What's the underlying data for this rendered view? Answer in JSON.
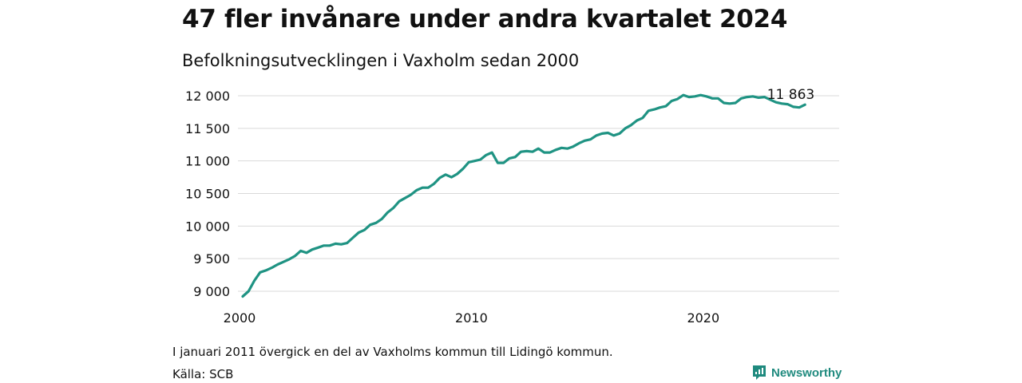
{
  "title": "47 fler invånare under andra kvartalet 2024",
  "subtitle": "Befolkningsutvecklingen i Vaxholm sedan 2000",
  "footnote": "I januari 2011 övergick en del av Vaxholms kommun till Lidingö kommun.",
  "source": "Källa: SCB",
  "brand": {
    "name": "Newsworthy",
    "icon": "newsworthy-logo-icon",
    "color": "#1f8a7e"
  },
  "chart_data": {
    "type": "line",
    "title": "47 fler invånare under andra kvartalet 2024",
    "subtitle": "Befolkningsutvecklingen i Vaxholm sedan 2000",
    "xlim": [
      2000,
      2025.25
    ],
    "ylim": [
      8900,
      12050
    ],
    "yticks": [
      9000,
      9500,
      10000,
      10500,
      11000,
      11500,
      12000
    ],
    "ytick_labels": [
      "9 000",
      "9 500",
      "10 000",
      "10 500",
      "11 000",
      "11 500",
      "12 000"
    ],
    "xticks": [
      2000,
      2010,
      2020
    ],
    "xtick_labels": [
      "2000",
      "2010",
      "2020"
    ],
    "grid": true,
    "line_color": "#1f9383",
    "end_label": "11 863",
    "series": [
      {
        "x": [
          2000.0,
          2000.25,
          2000.5,
          2000.75,
          2001.0,
          2001.25,
          2001.5,
          2001.75,
          2002.0,
          2002.25,
          2002.5,
          2002.75,
          2003.0,
          2003.25,
          2003.5,
          2003.75,
          2004.0,
          2004.25,
          2004.5,
          2004.75,
          2005.0,
          2005.25,
          2005.5,
          2005.75,
          2006.0,
          2006.25,
          2006.5,
          2006.75,
          2007.0,
          2007.25,
          2007.5,
          2007.75,
          2008.0,
          2008.25,
          2008.5,
          2008.75,
          2009.0,
          2009.25,
          2009.5,
          2009.75,
          2010.0,
          2010.25,
          2010.5,
          2010.75,
          2011.0,
          2011.25,
          2011.5,
          2011.75,
          2012.0,
          2012.25,
          2012.5,
          2012.75,
          2013.0,
          2013.25,
          2013.5,
          2013.75,
          2014.0,
          2014.25,
          2014.5,
          2014.75,
          2015.0,
          2015.25,
          2015.5,
          2015.75,
          2016.0,
          2016.25,
          2016.5,
          2016.75,
          2017.0,
          2017.25,
          2017.5,
          2017.75,
          2018.0,
          2018.25,
          2018.5,
          2018.75,
          2019.0,
          2019.25,
          2019.5,
          2019.75,
          2020.0,
          2020.25,
          2020.5,
          2020.75,
          2021.0,
          2021.25,
          2021.5,
          2021.75,
          2022.0,
          2022.25,
          2022.5,
          2022.75,
          2023.0,
          2023.25,
          2023.5,
          2023.75,
          2024.0,
          2024.25
        ],
        "y": [
          8920,
          9000,
          9160,
          9290,
          9320,
          9360,
          9410,
          9450,
          9490,
          9540,
          9620,
          9590,
          9640,
          9670,
          9700,
          9700,
          9730,
          9720,
          9740,
          9820,
          9900,
          9940,
          10020,
          10050,
          10110,
          10210,
          10280,
          10380,
          10430,
          10480,
          10550,
          10590,
          10590,
          10650,
          10740,
          10790,
          10750,
          10800,
          10880,
          10980,
          11000,
          11020,
          11090,
          11130,
          10970,
          10970,
          11040,
          11060,
          11140,
          11150,
          11140,
          11190,
          11130,
          11130,
          11170,
          11200,
          11190,
          11220,
          11270,
          11310,
          11330,
          11390,
          11420,
          11430,
          11390,
          11420,
          11500,
          11550,
          11620,
          11660,
          11770,
          11790,
          11820,
          11840,
          11920,
          11950,
          12010,
          11980,
          11990,
          12010,
          11990,
          11960,
          11960,
          11890,
          11880,
          11890,
          11960,
          11980,
          11990,
          11970,
          11980,
          11940,
          11900,
          11880,
          11870,
          11830,
          11820,
          11863
        ]
      }
    ]
  }
}
